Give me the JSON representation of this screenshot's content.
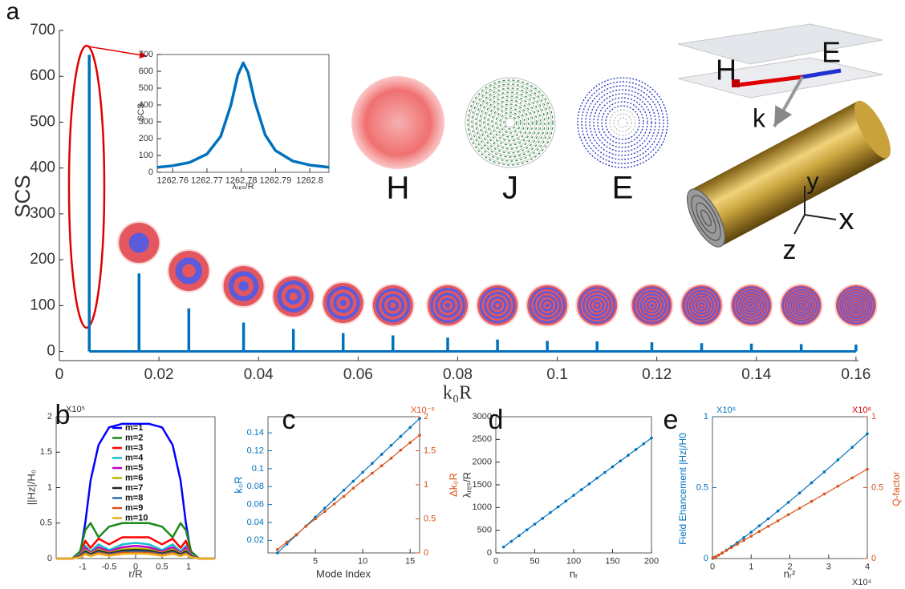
{
  "chart_data": [
    {
      "type": "stem",
      "panel": "a",
      "xlabel": "k₀R",
      "ylabel": "SCS",
      "color": "#0072bd",
      "x": [
        0.006,
        0.016,
        0.026,
        0.037,
        0.047,
        0.057,
        0.067,
        0.078,
        0.088,
        0.098,
        0.108,
        0.119,
        0.129,
        0.139,
        0.149,
        0.16
      ],
      "values": [
        647,
        170,
        94,
        63,
        49,
        40,
        35,
        30,
        26,
        23,
        22,
        20,
        18,
        17,
        16,
        15
      ],
      "xlim": [
        0,
        0.1605
      ],
      "ylim": [
        -20,
        700
      ],
      "xticks": [
        0,
        0.02,
        0.04,
        0.06,
        0.08,
        0.1,
        0.12,
        0.14,
        0.16
      ],
      "yticks": [
        0,
        100,
        200,
        300,
        400,
        500,
        600,
        700
      ],
      "annotations": {
        "fields": [
          "H",
          "J",
          "E"
        ],
        "rod": [
          "H",
          "E",
          "k",
          "y",
          "x",
          "z"
        ]
      }
    },
    {
      "type": "line",
      "xlabel": "λᵣₑₛ/R",
      "ylabel": "SCS",
      "color": "#0072bd",
      "x": [
        1262.7556,
        1262.76,
        1262.765,
        1262.77,
        1262.774,
        1262.777,
        1262.779,
        1262.7806,
        1262.782,
        1262.784,
        1262.787,
        1262.79,
        1262.795,
        1262.8,
        1262.8056
      ],
      "values": [
        30,
        39,
        59,
        108,
        213,
        400,
        578,
        650,
        593,
        417,
        222,
        129,
        67,
        43,
        30
      ],
      "xlim": [
        1262.7555,
        1262.8056
      ],
      "ylim": [
        0,
        700
      ],
      "xticks": [
        1262.76,
        1262.77,
        1262.78,
        1262.79,
        1262.8
      ],
      "yticks": [
        0,
        100,
        200,
        300,
        400,
        500,
        600,
        700
      ]
    },
    {
      "type": "line",
      "panel": "b",
      "xlabel": "r/R",
      "ylabel": "||Hz|/H₀",
      "yexponent": "X10⁵",
      "legend": "upper center",
      "x": [
        -1.5,
        -1.2,
        -1.05,
        -0.95,
        -0.85,
        -0.7,
        -0.5,
        -0.25,
        0,
        0.25,
        0.5,
        0.7,
        0.85,
        0.95,
        1.05,
        1.2,
        1.5
      ],
      "series": [
        {
          "name": "m=1",
          "color": "#0000ff",
          "values": [
            0,
            0,
            0.05,
            0.5,
            1.1,
            1.6,
            1.85,
            1.9,
            1.9,
            1.9,
            1.85,
            1.6,
            1.1,
            0.5,
            0.05,
            0,
            0
          ]
        },
        {
          "name": "m=2",
          "color": "#1a8a1a",
          "values": [
            0,
            0,
            0.1,
            0.4,
            0.5,
            0.3,
            0.45,
            0.5,
            0.5,
            0.5,
            0.45,
            0.3,
            0.5,
            0.4,
            0.1,
            0,
            0
          ]
        },
        {
          "name": "m=3",
          "color": "#ff0000",
          "values": [
            0,
            0,
            0.05,
            0.25,
            0.15,
            0.28,
            0.2,
            0.3,
            0.3,
            0.3,
            0.2,
            0.28,
            0.15,
            0.25,
            0.05,
            0,
            0
          ]
        },
        {
          "name": "m=4",
          "color": "#17becf",
          "values": [
            0,
            0,
            0.05,
            0.18,
            0.1,
            0.2,
            0.12,
            0.2,
            0.22,
            0.2,
            0.12,
            0.2,
            0.1,
            0.18,
            0.05,
            0,
            0
          ]
        },
        {
          "name": "m=5",
          "color": "#c000c0",
          "values": [
            0,
            0,
            0.04,
            0.15,
            0.08,
            0.16,
            0.1,
            0.16,
            0.18,
            0.16,
            0.1,
            0.16,
            0.08,
            0.15,
            0.04,
            0,
            0
          ]
        },
        {
          "name": "m=6",
          "color": "#b5b500",
          "values": [
            0,
            0,
            0.03,
            0.12,
            0.07,
            0.13,
            0.08,
            0.13,
            0.14,
            0.13,
            0.08,
            0.13,
            0.07,
            0.12,
            0.03,
            0,
            0
          ]
        },
        {
          "name": "m=7",
          "color": "#222222",
          "values": [
            0,
            0,
            0.03,
            0.1,
            0.06,
            0.11,
            0.07,
            0.11,
            0.12,
            0.11,
            0.07,
            0.11,
            0.06,
            0.1,
            0.03,
            0,
            0
          ]
        },
        {
          "name": "m=8",
          "color": "#2b6cb0",
          "values": [
            0,
            0,
            0.02,
            0.08,
            0.05,
            0.09,
            0.06,
            0.09,
            0.1,
            0.09,
            0.06,
            0.09,
            0.05,
            0.08,
            0.02,
            0,
            0
          ]
        },
        {
          "name": "m=9",
          "color": "#d95319",
          "values": [
            0,
            0,
            0.02,
            0.07,
            0.04,
            0.08,
            0.05,
            0.08,
            0.08,
            0.08,
            0.05,
            0.08,
            0.04,
            0.07,
            0.02,
            0,
            0
          ]
        },
        {
          "name": "m=10",
          "color": "#edb120",
          "values": [
            0,
            0,
            0.02,
            0.06,
            0.035,
            0.065,
            0.04,
            0.065,
            0.07,
            0.065,
            0.04,
            0.065,
            0.035,
            0.06,
            0.02,
            0,
            0
          ]
        }
      ],
      "xlim": [
        -1.5,
        1.5
      ],
      "ylim": [
        0,
        2
      ],
      "xticks": [
        -1,
        -0.5,
        0,
        0.5,
        1
      ],
      "yticks": [
        0,
        0.5,
        1,
        1.5,
        2
      ]
    },
    {
      "type": "line",
      "panel": "c",
      "xlabel": "Mode Index",
      "ylabel": "k₀R",
      "y2label": "Δk₀R",
      "y2exponent": "X10⁻⁶",
      "markers": true,
      "x": [
        1,
        2,
        3,
        4,
        5,
        6,
        7,
        8,
        9,
        10,
        11,
        12,
        13,
        14,
        15,
        16
      ],
      "series": [
        {
          "color": "#0072bd",
          "values": [
            0.006,
            0.016,
            0.026,
            0.036,
            0.046,
            0.056,
            0.066,
            0.076,
            0.086,
            0.096,
            0.106,
            0.116,
            0.126,
            0.136,
            0.146,
            0.156
          ]
        },
        {
          "color": "#d95319",
          "axis": "y2",
          "values": [
            0.05,
            0.16,
            0.27,
            0.39,
            0.5,
            0.61,
            0.72,
            0.83,
            0.95,
            1.06,
            1.17,
            1.28,
            1.39,
            1.51,
            1.62,
            1.73
          ]
        }
      ],
      "xlim": [
        0,
        16
      ],
      "ylim": [
        0.006,
        0.158
      ],
      "y2lim": [
        0,
        2
      ],
      "xticks": [
        5,
        10,
        15
      ],
      "yticks": [
        0.02,
        0.04,
        0.06,
        0.08,
        0.1,
        0.12,
        0.14
      ],
      "y2ticks": [
        0,
        0.5,
        1,
        1.5,
        2
      ]
    },
    {
      "type": "line",
      "panel": "d",
      "xlabel": "nᵣ",
      "ylabel": "λᵣₑₛ/R",
      "markers": true,
      "color": "#0072bd",
      "x": [
        10,
        20,
        30,
        40,
        50,
        60,
        70,
        80,
        90,
        100,
        110,
        120,
        130,
        140,
        150,
        160,
        170,
        180,
        190,
        200
      ],
      "values": [
        130,
        256,
        383,
        509,
        635,
        762,
        888,
        1014,
        1141,
        1267,
        1393,
        1520,
        1646,
        1772,
        1898,
        2025,
        2151,
        2277,
        2404,
        2530
      ],
      "xlim": [
        0,
        200
      ],
      "ylim": [
        0,
        3000
      ],
      "xticks": [
        0,
        50,
        100,
        150,
        200
      ],
      "yticks": [
        0,
        500,
        1000,
        1500,
        2000,
        2500,
        3000
      ]
    },
    {
      "type": "line",
      "panel": "e",
      "xlabel": "nᵣ²",
      "ylabel": "Field Ehancement |Hz|/H0",
      "y2label": "Q-factor",
      "xexponent": "X10⁴",
      "yexponent": "X10⁶",
      "y2exponent": "X10⁶",
      "y2exponent_color": "#d00000",
      "markers": true,
      "x": [
        0.01,
        0.04,
        0.09,
        0.16,
        0.25,
        0.36,
        0.49,
        0.64,
        0.81,
        1,
        1.21,
        1.44,
        1.69,
        1.96,
        2.25,
        2.56,
        2.89,
        3.24,
        3.61,
        4
      ],
      "series": [
        {
          "color": "#0072bd",
          "values": [
            0.001,
            0.005,
            0.013,
            0.024,
            0.039,
            0.059,
            0.084,
            0.113,
            0.147,
            0.186,
            0.231,
            0.28,
            0.335,
            0.396,
            0.462,
            0.534,
            0.611,
            0.695,
            0.784,
            0.88
          ]
        },
        {
          "color": "#d95319",
          "axis": "y2",
          "values": [
            0.002,
            0.006,
            0.014,
            0.025,
            0.039,
            0.057,
            0.077,
            0.101,
            0.128,
            0.158,
            0.191,
            0.227,
            0.266,
            0.309,
            0.354,
            0.403,
            0.455,
            0.51,
            0.569,
            0.63
          ]
        }
      ],
      "xlim": [
        0,
        4
      ],
      "ylim": [
        0,
        1
      ],
      "y2lim": [
        0,
        1
      ],
      "xticks": [
        0,
        1,
        2,
        3,
        4
      ],
      "yticks": [
        0,
        0.5,
        1
      ],
      "y2ticks": [
        0,
        0.5,
        1
      ]
    }
  ]
}
